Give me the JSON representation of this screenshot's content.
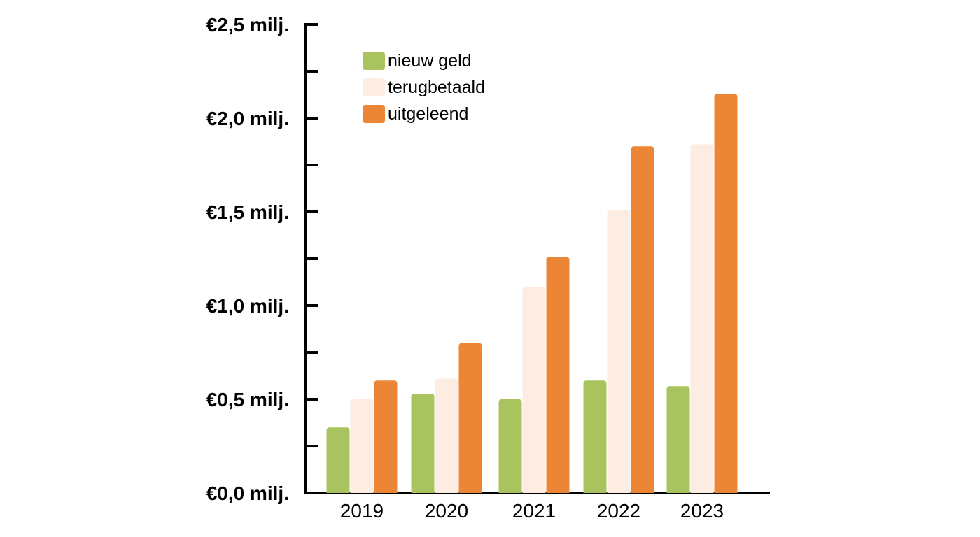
{
  "chart_data": {
    "type": "bar",
    "categories": [
      "2019",
      "2020",
      "2021",
      "2022",
      "2023"
    ],
    "series": [
      {
        "name": "nieuw geld",
        "color": "#a9c45f",
        "values": [
          0.35,
          0.53,
          0.5,
          0.6,
          0.57
        ]
      },
      {
        "name": "terugbetaald",
        "color": "#fdece1",
        "values": [
          0.5,
          0.61,
          1.1,
          1.51,
          1.86
        ]
      },
      {
        "name": "uitgeleend",
        "color": "#ec8535",
        "values": [
          0.6,
          0.8,
          1.26,
          1.85,
          2.13
        ]
      }
    ],
    "ylim": [
      0,
      2.5
    ],
    "yticks": [
      0,
      0.25,
      0.5,
      0.75,
      1.0,
      1.25,
      1.5,
      1.75,
      2.0,
      2.25,
      2.5
    ],
    "ytick_labels": [
      {
        "value": 0,
        "label": "€0,0 milj."
      },
      {
        "value": 0.5,
        "label": "€0,5 milj."
      },
      {
        "value": 1.0,
        "label": "€1,0 milj."
      },
      {
        "value": 1.5,
        "label": "€1,5 milj."
      },
      {
        "value": 2.0,
        "label": "€2,0 milj."
      },
      {
        "value": 2.5,
        "label": "€2,5 milj."
      }
    ],
    "title": "",
    "xlabel": "",
    "ylabel": "",
    "legend_position": "top-left",
    "grid": false
  }
}
